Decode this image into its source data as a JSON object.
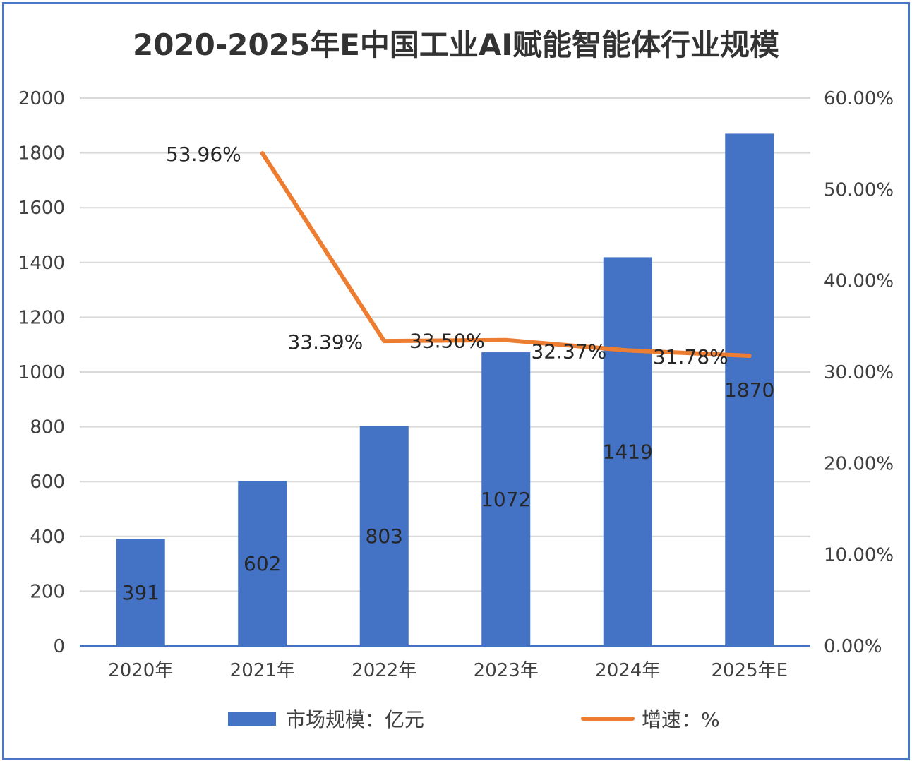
{
  "chart_data": {
    "type": "bar+line",
    "title": "2020-2025年E中国工业AI赋能智能体行业规模",
    "categories": [
      "2020年",
      "2021年",
      "2022年",
      "2023年",
      "2024年",
      "2025年E"
    ],
    "series": [
      {
        "name": "市场规模：亿元",
        "type": "bar",
        "axis": "left",
        "values": [
          391,
          602,
          803,
          1072,
          1419,
          1870
        ],
        "labels": [
          "391",
          "602",
          "803",
          "1072",
          "1419",
          "1870"
        ]
      },
      {
        "name": "增速：%",
        "type": "line",
        "axis": "right",
        "values": [
          null,
          53.96,
          33.39,
          33.5,
          32.37,
          31.78
        ],
        "labels": [
          "",
          "53.96%",
          "33.39%",
          "33.50%",
          "32.37%",
          "31.78%"
        ]
      }
    ],
    "y_left": {
      "range": [
        0,
        2000
      ],
      "ticks": [
        "0",
        "200",
        "400",
        "600",
        "800",
        "1000",
        "1200",
        "1400",
        "1600",
        "1800",
        "2000"
      ]
    },
    "y_right": {
      "range": [
        0,
        60
      ],
      "ticks": [
        "0.00%",
        "10.00%",
        "20.00%",
        "30.00%",
        "40.00%",
        "50.00%",
        "60.00%"
      ]
    },
    "grid": true,
    "legend_position": "bottom",
    "colors": {
      "bar": "#4472c4",
      "line": "#ed7d31",
      "frame": "#4a76c7"
    }
  }
}
